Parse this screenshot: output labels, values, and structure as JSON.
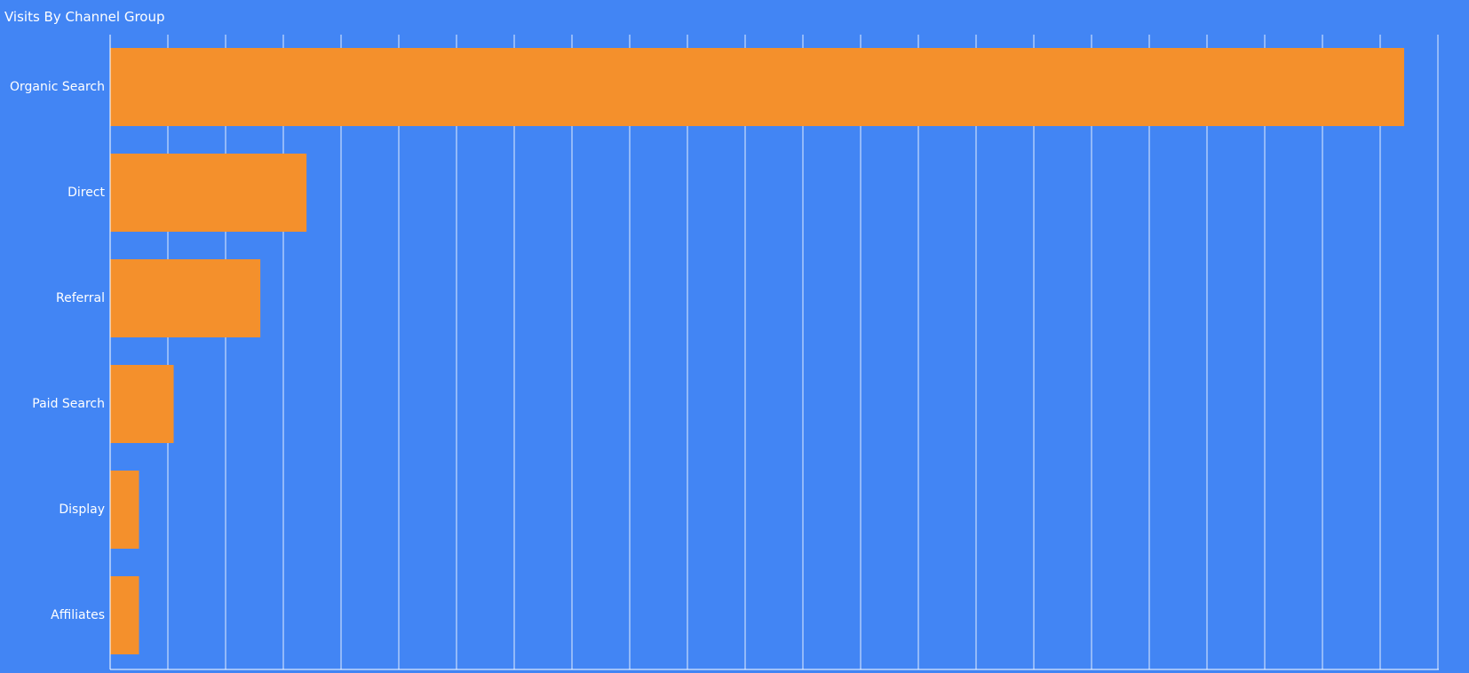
{
  "chart_title": "Visits By Channel Group",
  "colors": {
    "background": "#4285f4",
    "bar": "#f4902c",
    "gridline": "#ffffff",
    "text": "#ffffff"
  },
  "chart_data": {
    "type": "bar",
    "orientation": "horizontal",
    "title": "Visits By Channel Group",
    "xlabel": "",
    "ylabel": "",
    "categories": [
      "Organic Search",
      "Direct",
      "Referral",
      "Paid Search",
      "Display",
      "Affiliates"
    ],
    "values": [
      22.4,
      3.4,
      2.6,
      1.1,
      0.5,
      0.5
    ],
    "xlim": [
      0,
      23.0
    ],
    "x_tick_labels_shown": false,
    "grid": true,
    "legend": "none"
  }
}
